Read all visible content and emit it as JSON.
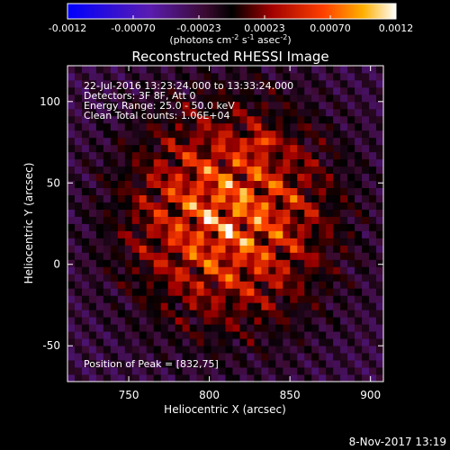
{
  "chart_data": {
    "type": "heatmap",
    "title": "Reconstructed RHESSI Image",
    "xlabel": "Heliocentric X (arcsec)",
    "ylabel": "Heliocentric Y (arcsec)",
    "xlim": [
      712,
      908
    ],
    "ylim": [
      -72,
      122
    ],
    "x_ticks": [
      "750",
      "800",
      "850",
      "900"
    ],
    "y_ticks": [
      "-50",
      "0",
      "50",
      "100"
    ],
    "colorbar": {
      "min": -0.0012,
      "max": 0.0012,
      "tick_labels": [
        "-0.0012",
        "-0.00070",
        "-0.00023",
        "0.00023",
        "0.00070",
        "0.0012"
      ],
      "label": "(photons cm",
      "label_exp1": "-2",
      "label_mid": " s",
      "label_exp2": "-1",
      "label_mid2": " asec",
      "label_exp3": "-2",
      "label_end": ")"
    },
    "annotations": [
      "22-Jul-2016 13:23:24.000 to 13:33:24.000",
      "Detectors: 3F 8F, Att 0",
      "Energy Range: 25.0 - 50.0 keV",
      "Clean    Total counts: 1.06E+04"
    ],
    "peak_label": "Position of Peak = [832,75]",
    "peak_position": [
      832,
      75
    ],
    "grid": false
  },
  "footer": {
    "timestamp": "8-Nov-2017 13:19"
  }
}
